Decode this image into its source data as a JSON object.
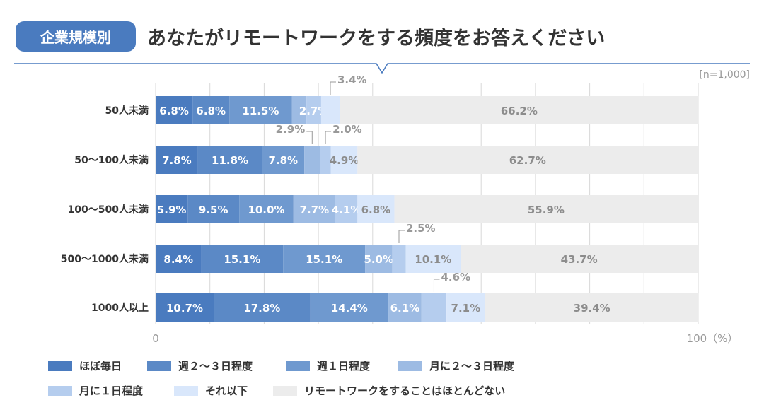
{
  "header": {
    "badge": "企業規模別",
    "title": "あなたがリモートワークをする頻度をお答えください"
  },
  "chart_data": {
    "type": "bar",
    "orientation": "horizontal-stacked-100",
    "note": "[n=1,000]",
    "xlim": [
      0,
      100
    ],
    "x_tick_labels": [
      "0",
      "100（%）"
    ],
    "categories": [
      "50人未満",
      "50〜100人未満",
      "100〜500人未満",
      "500〜1000人未満",
      "1000人以上"
    ],
    "series": [
      {
        "name": "ほぼ毎日",
        "color": "#4a7bbf",
        "values": [
          6.8,
          7.8,
          5.9,
          8.4,
          10.7
        ]
      },
      {
        "name": "週２〜３日程度",
        "color": "#5b89c6",
        "values": [
          6.8,
          11.8,
          9.5,
          15.1,
          17.8
        ]
      },
      {
        "name": "週１日程度",
        "color": "#6f99cf",
        "values": [
          11.5,
          7.8,
          10.0,
          15.1,
          14.4
        ]
      },
      {
        "name": "月に２〜３日程度",
        "color": "#9dbbe3",
        "values": [
          2.7,
          2.9,
          7.7,
          5.0,
          6.1
        ]
      },
      {
        "name": "月に１日程度",
        "color": "#b5cdee",
        "values": [
          2.7,
          2.0,
          4.1,
          2.5,
          4.6
        ]
      },
      {
        "name": "それ以下",
        "color": "#d9e7fb",
        "values": [
          3.4,
          4.9,
          6.8,
          10.1,
          7.1
        ]
      },
      {
        "name": "リモートワークをすることはほとんどない",
        "color": "#ececec",
        "values": [
          66.2,
          62.7,
          55.9,
          43.7,
          39.4
        ]
      }
    ],
    "callouts": [
      [
        0,
        3
      ],
      [
        0,
        5
      ],
      [
        1,
        3
      ],
      [
        1,
        4
      ],
      [
        3,
        4
      ],
      [
        4,
        4
      ]
    ]
  }
}
